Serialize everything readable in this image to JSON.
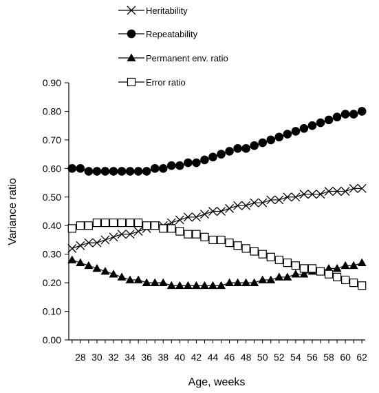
{
  "chart_data": {
    "type": "line",
    "xlabel": "Age, weeks",
    "ylabel": "Variance ratio",
    "ylim": [
      0,
      0.9
    ],
    "yticks": [
      "0.00",
      "0.10",
      "0.20",
      "0.30",
      "0.40",
      "0.50",
      "0.60",
      "0.70",
      "0.80",
      "0.90"
    ],
    "xlim": [
      26.6,
      62.4
    ],
    "xticks": [
      "28",
      "30",
      "32",
      "34",
      "36",
      "38",
      "40",
      "42",
      "44",
      "46",
      "48",
      "50",
      "52",
      "54",
      "56",
      "58",
      "60",
      "62"
    ],
    "grid": false,
    "legend_position": "top",
    "x": [
      27,
      28,
      29,
      30,
      31,
      32,
      33,
      34,
      35,
      36,
      37,
      38,
      39,
      40,
      41,
      42,
      43,
      44,
      45,
      46,
      47,
      48,
      49,
      50,
      51,
      52,
      53,
      54,
      55,
      56,
      57,
      58,
      59,
      60,
      61,
      62
    ],
    "series": [
      {
        "name": "Heritability",
        "marker": "cross",
        "values": [
          0.32,
          0.33,
          0.34,
          0.34,
          0.35,
          0.36,
          0.37,
          0.37,
          0.38,
          0.39,
          0.4,
          0.4,
          0.41,
          0.42,
          0.43,
          0.43,
          0.44,
          0.45,
          0.45,
          0.46,
          0.47,
          0.47,
          0.48,
          0.48,
          0.49,
          0.49,
          0.5,
          0.5,
          0.51,
          0.51,
          0.51,
          0.52,
          0.52,
          0.52,
          0.53,
          0.53
        ]
      },
      {
        "name": "Repeatability",
        "marker": "filled-circle",
        "values": [
          0.6,
          0.6,
          0.59,
          0.59,
          0.59,
          0.59,
          0.59,
          0.59,
          0.59,
          0.59,
          0.6,
          0.6,
          0.61,
          0.61,
          0.62,
          0.62,
          0.63,
          0.64,
          0.65,
          0.66,
          0.67,
          0.67,
          0.68,
          0.69,
          0.7,
          0.71,
          0.72,
          0.73,
          0.74,
          0.75,
          0.76,
          0.77,
          0.78,
          0.79,
          0.79,
          0.8
        ]
      },
      {
        "name": "Permanent env. ratio",
        "marker": "filled-triangle",
        "values": [
          0.28,
          0.27,
          0.26,
          0.25,
          0.24,
          0.23,
          0.22,
          0.21,
          0.21,
          0.2,
          0.2,
          0.2,
          0.19,
          0.19,
          0.19,
          0.19,
          0.19,
          0.19,
          0.19,
          0.2,
          0.2,
          0.2,
          0.2,
          0.21,
          0.21,
          0.22,
          0.22,
          0.23,
          0.23,
          0.24,
          0.24,
          0.25,
          0.25,
          0.26,
          0.26,
          0.27
        ]
      },
      {
        "name": "Error ratio",
        "marker": "open-square",
        "values": [
          0.39,
          0.4,
          0.4,
          0.41,
          0.41,
          0.41,
          0.41,
          0.41,
          0.41,
          0.4,
          0.4,
          0.39,
          0.39,
          0.38,
          0.37,
          0.37,
          0.36,
          0.35,
          0.35,
          0.34,
          0.33,
          0.32,
          0.31,
          0.3,
          0.29,
          0.28,
          0.27,
          0.26,
          0.25,
          0.25,
          0.24,
          0.23,
          0.22,
          0.21,
          0.2,
          0.19
        ]
      }
    ]
  }
}
